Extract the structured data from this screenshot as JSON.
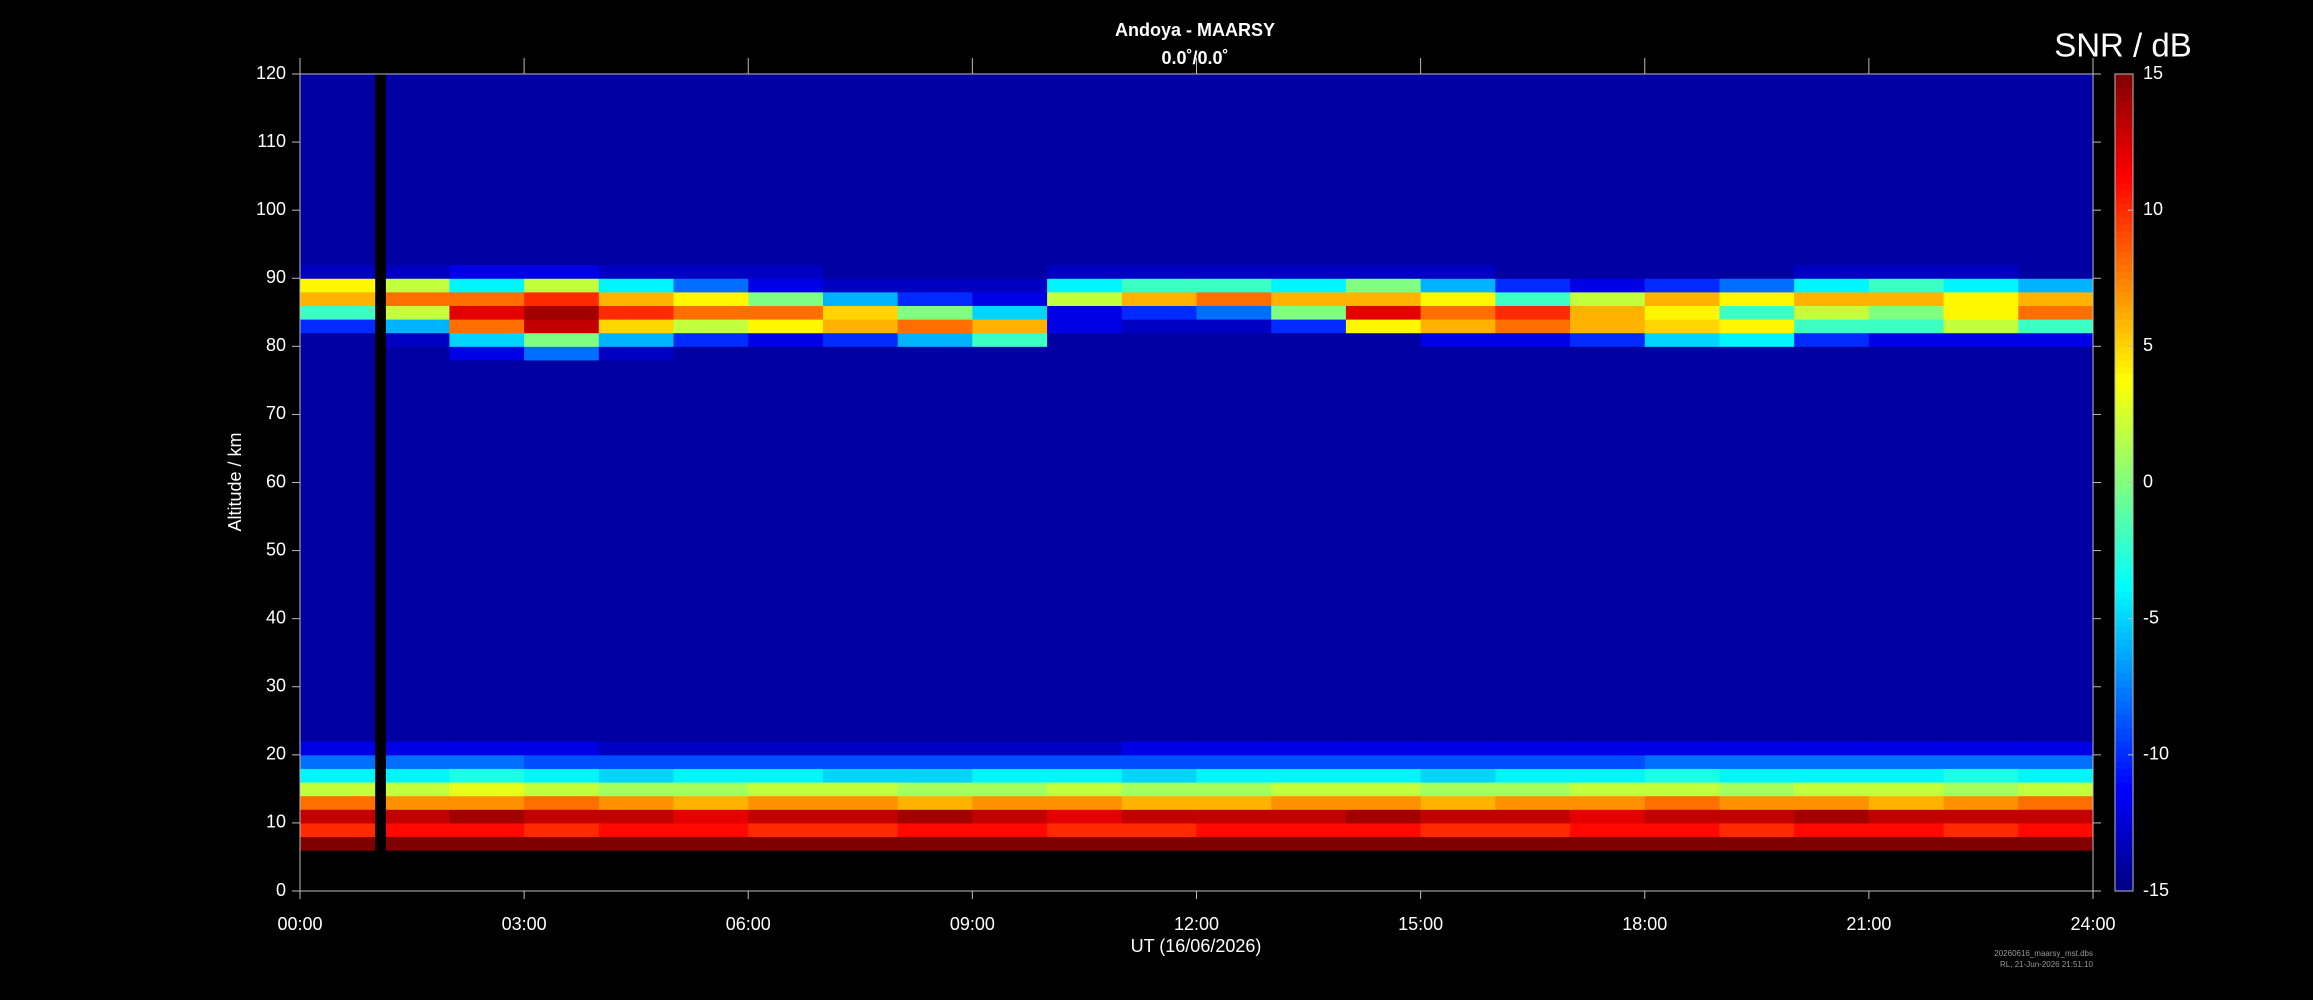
{
  "chart_data": {
    "type": "heatmap",
    "title": "Andoya - MAARSY",
    "subtitle": "0.0˚/0.0˚",
    "x_label": "UT (16/06/2026)",
    "y_label": "Altitude / km",
    "colorbar_label": "SNR / dB",
    "colorscale": "jet",
    "footer": [
      "20260616_maarsy_mst.dbs",
      "RL, 21-Jun-2026 21:51:10"
    ],
    "xlim": [
      0,
      24
    ],
    "xticks": [
      {
        "value": 0,
        "label": "00:00"
      },
      {
        "value": 3,
        "label": "03:00"
      },
      {
        "value": 6,
        "label": "06:00"
      },
      {
        "value": 9,
        "label": "09:00"
      },
      {
        "value": 12,
        "label": "12:00"
      },
      {
        "value": 15,
        "label": "15:00"
      },
      {
        "value": 18,
        "label": "18:00"
      },
      {
        "value": 21,
        "label": "21:00"
      },
      {
        "value": 24,
        "label": "24:00"
      }
    ],
    "ylim": [
      0,
      120
    ],
    "yticks": [
      0,
      10,
      20,
      30,
      40,
      50,
      60,
      70,
      80,
      90,
      100,
      110,
      120
    ],
    "zlim": [
      -15,
      15
    ],
    "zticks": [
      -15,
      -10,
      -5,
      0,
      5,
      10,
      15
    ],
    "x_edges": [
      0,
      1,
      1.15,
      2,
      3,
      4,
      5,
      6,
      7,
      8,
      9,
      10,
      11,
      12,
      13,
      14,
      15,
      16,
      17,
      18,
      19,
      20,
      21,
      22,
      23,
      24
    ],
    "y_edges": [
      6,
      8,
      10,
      12,
      14,
      16,
      18,
      20,
      22,
      78,
      80,
      82,
      84,
      86,
      88,
      90,
      92,
      120
    ],
    "z": [
      [
        15,
        null,
        15,
        15,
        15,
        15,
        15,
        15,
        15,
        15,
        15,
        15,
        15,
        15,
        15,
        15,
        15,
        15,
        15,
        15,
        15,
        15,
        15,
        15,
        15
      ],
      [
        10,
        null,
        11,
        11,
        10,
        11,
        11,
        10,
        10,
        11,
        11,
        10,
        10,
        11,
        11,
        11,
        10,
        10,
        11,
        11,
        10,
        11,
        11,
        10,
        11
      ],
      [
        13,
        null,
        13,
        14,
        13,
        13,
        12,
        13,
        13,
        14,
        13,
        12,
        13,
        13,
        13,
        14,
        13,
        13,
        12,
        13,
        13,
        14,
        13,
        13,
        13
      ],
      [
        8,
        null,
        7,
        7,
        8,
        7,
        6,
        7,
        7,
        6,
        7,
        7,
        6,
        6,
        7,
        7,
        6,
        7,
        7,
        8,
        7,
        7,
        6,
        7,
        8
      ],
      [
        2,
        null,
        2,
        3,
        2,
        1,
        1,
        2,
        2,
        1,
        1,
        2,
        1,
        1,
        2,
        2,
        1,
        1,
        2,
        2,
        1,
        2,
        2,
        1,
        2
      ],
      [
        -4,
        null,
        -4,
        -3,
        -4,
        -5,
        -4,
        -4,
        -5,
        -5,
        -4,
        -4,
        -5,
        -4,
        -4,
        -4,
        -5,
        -4,
        -4,
        -3,
        -4,
        -4,
        -4,
        -3,
        -4
      ],
      [
        -8,
        null,
        -8,
        -8,
        -9,
        -9,
        -9,
        -9,
        -9,
        -9,
        -9,
        -9,
        -9,
        -9,
        -9,
        -9,
        -9,
        -9,
        -9,
        -8,
        -8,
        -8,
        -8,
        -8,
        -8
      ],
      [
        -12,
        null,
        -12,
        -12,
        -12,
        -13,
        -13,
        -13,
        -13,
        -13,
        -13,
        -13,
        -12,
        -12,
        -12,
        -12,
        -12,
        -12,
        -12,
        -12,
        -12,
        -12,
        -12,
        -12,
        -12
      ],
      [
        -14,
        null,
        -14,
        -14,
        -14,
        -14,
        -14,
        -14,
        -14,
        -14,
        -14,
        -14,
        -14,
        -14,
        -14,
        -14,
        -14,
        -14,
        -14,
        -14,
        -14,
        -14,
        -14,
        -14,
        -14
      ],
      [
        -14,
        null,
        -14,
        -12,
        -8,
        -13,
        -14,
        -14,
        -14,
        -14,
        -14,
        -14,
        -14,
        -14,
        -14,
        -14,
        -14,
        -14,
        -14,
        -14,
        -14,
        -14,
        -14,
        -14,
        -14
      ],
      [
        -14,
        null,
        -13,
        -5,
        0,
        -6,
        -10,
        -12,
        -10,
        -6,
        -2,
        -14,
        -14,
        -14,
        -14,
        -14,
        -12,
        -12,
        -10,
        -5,
        -4,
        -10,
        -12,
        -12,
        -12
      ],
      [
        -10,
        null,
        -6,
        8,
        13,
        5,
        2,
        4,
        6,
        8,
        6,
        -12,
        -13,
        -13,
        -10,
        4,
        6,
        8,
        6,
        5,
        4,
        -2,
        -2,
        2,
        -2
      ],
      [
        -2,
        null,
        2,
        12,
        14,
        10,
        8,
        8,
        5,
        0,
        -5,
        -12,
        -10,
        -8,
        0,
        12,
        8,
        10,
        6,
        4,
        -2,
        2,
        0,
        4,
        8
      ],
      [
        6,
        null,
        8,
        8,
        10,
        6,
        4,
        0,
        -6,
        -10,
        -12,
        2,
        6,
        8,
        6,
        6,
        4,
        -2,
        2,
        6,
        4,
        6,
        6,
        4,
        6
      ],
      [
        4,
        null,
        2,
        -4,
        2,
        -4,
        -8,
        -12,
        -13,
        -13,
        -13,
        -4,
        -2,
        -2,
        -4,
        0,
        -6,
        -10,
        -12,
        -10,
        -8,
        -4,
        -2,
        -4,
        -6
      ],
      [
        -13,
        null,
        -13,
        -12,
        -12,
        -13,
        -13,
        -13,
        -14,
        -14,
        -14,
        -13,
        -13,
        -13,
        -13,
        -13,
        -13,
        -14,
        -14,
        -14,
        -14,
        -13,
        -13,
        -13,
        -14
      ],
      [
        -14,
        null,
        -14,
        -14,
        -14,
        -14,
        -14,
        -14,
        -14,
        -14,
        -14,
        -14,
        -14,
        -14,
        -14,
        -14,
        -14,
        -14,
        -14,
        -14,
        -14,
        -14,
        -14,
        -14,
        -14
      ]
    ]
  }
}
